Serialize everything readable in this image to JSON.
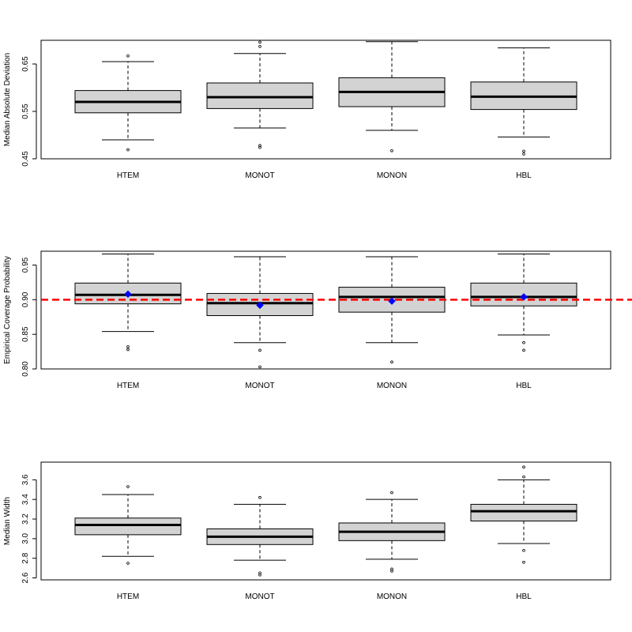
{
  "chart_data": [
    {
      "type": "boxplot",
      "ylabel": "Median Absolute Deviation",
      "categories": [
        "HTEM",
        "MONOT",
        "MONON",
        "HBL"
      ],
      "ylim": [
        0.45,
        0.7
      ],
      "yticks": [
        0.45,
        0.55,
        0.65
      ],
      "ytick_labels": [
        "0.45",
        "0.55",
        "0.65"
      ],
      "boxes": [
        {
          "name": "HTEM",
          "whisker_low": 0.49,
          "q1": 0.547,
          "median": 0.57,
          "q3": 0.594,
          "whisker_high": 0.655,
          "outliers": [
            0.469,
            0.667
          ]
        },
        {
          "name": "MONOT",
          "whisker_low": 0.515,
          "q1": 0.556,
          "median": 0.58,
          "q3": 0.61,
          "whisker_high": 0.672,
          "outliers": [
            0.474,
            0.478,
            0.687,
            0.696
          ]
        },
        {
          "name": "MONON",
          "whisker_low": 0.51,
          "q1": 0.56,
          "median": 0.591,
          "q3": 0.621,
          "whisker_high": 0.697,
          "outliers": [
            0.467
          ]
        },
        {
          "name": "HBL",
          "whisker_low": 0.496,
          "q1": 0.554,
          "median": 0.581,
          "q3": 0.612,
          "whisker_high": 0.684,
          "outliers": [
            0.46,
            0.466
          ]
        }
      ]
    },
    {
      "type": "boxplot",
      "ylabel": "Empirical Coverage Probability",
      "categories": [
        "HTEM",
        "MONOT",
        "MONON",
        "HBL"
      ],
      "ylim": [
        0.8,
        0.97
      ],
      "yticks": [
        0.8,
        0.85,
        0.9,
        0.95
      ],
      "ytick_labels": [
        "0.80",
        "0.85",
        "0.90",
        "0.95"
      ],
      "reference_line": {
        "value": 0.9,
        "color": "#ff0000",
        "style": "dashed"
      },
      "mean_marker_color": "#0000ff",
      "boxes": [
        {
          "name": "HTEM",
          "whisker_low": 0.854,
          "q1": 0.894,
          "median": 0.907,
          "q3": 0.924,
          "whisker_high": 0.966,
          "mean": 0.908,
          "outliers": [
            0.828,
            0.832
          ]
        },
        {
          "name": "MONOT",
          "whisker_low": 0.838,
          "q1": 0.877,
          "median": 0.895,
          "q3": 0.909,
          "whisker_high": 0.962,
          "mean": 0.892,
          "outliers": [
            0.803,
            0.827
          ]
        },
        {
          "name": "MONON",
          "whisker_low": 0.838,
          "q1": 0.882,
          "median": 0.904,
          "q3": 0.918,
          "whisker_high": 0.962,
          "mean": 0.898,
          "outliers": [
            0.81
          ]
        },
        {
          "name": "HBL",
          "whisker_low": 0.849,
          "q1": 0.891,
          "median": 0.904,
          "q3": 0.924,
          "whisker_high": 0.966,
          "mean": 0.904,
          "outliers": [
            0.827,
            0.838
          ]
        }
      ]
    },
    {
      "type": "boxplot",
      "ylabel": "Median Width",
      "categories": [
        "HTEM",
        "MONOT",
        "MONON",
        "HBL"
      ],
      "ylim": [
        2.58,
        3.78
      ],
      "yticks": [
        2.6,
        2.8,
        3.0,
        3.2,
        3.4,
        3.6
      ],
      "ytick_labels": [
        "2.6",
        "2.8",
        "3.0",
        "3.2",
        "3.4",
        "3.6"
      ],
      "boxes": [
        {
          "name": "HTEM",
          "whisker_low": 2.82,
          "q1": 3.04,
          "median": 3.14,
          "q3": 3.21,
          "whisker_high": 3.45,
          "outliers": [
            2.75,
            3.53
          ]
        },
        {
          "name": "MONOT",
          "whisker_low": 2.78,
          "q1": 2.94,
          "median": 3.02,
          "q3": 3.1,
          "whisker_high": 3.35,
          "outliers": [
            2.63,
            2.65,
            3.42
          ]
        },
        {
          "name": "MONON",
          "whisker_low": 2.79,
          "q1": 2.98,
          "median": 3.07,
          "q3": 3.16,
          "whisker_high": 3.4,
          "outliers": [
            2.67,
            2.69,
            3.47
          ]
        },
        {
          "name": "HBL",
          "whisker_low": 2.95,
          "q1": 3.18,
          "median": 3.28,
          "q3": 3.35,
          "whisker_high": 3.6,
          "outliers": [
            2.76,
            2.88,
            3.63,
            3.73
          ]
        }
      ]
    }
  ]
}
